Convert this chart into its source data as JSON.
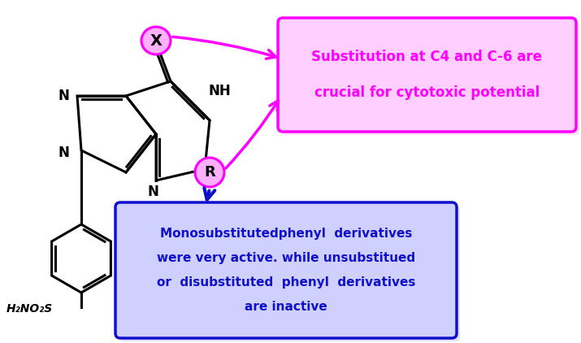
{
  "bg_color": "#ffffff",
  "magenta": "#FF00FF",
  "blue": "#1010CC",
  "black": "#000000",
  "pink_fill": "#FFB0FF",
  "pink_light": "#FFD0FF",
  "blue_light": "#D0D0FF",
  "box1_text_line1": "Substitution at C4 and C-6 are",
  "box1_text_line2": "crucial for cytotoxic potential",
  "box2_text_line1": "Monosubstitutedphenyl  derivatives",
  "box2_text_line2": "were very active. while unsubstitued",
  "box2_text_line3": "or  disubstituted  phenyl  derivatives",
  "box2_text_line4": "are inactive",
  "h2no2s": "H₂NO₂S"
}
